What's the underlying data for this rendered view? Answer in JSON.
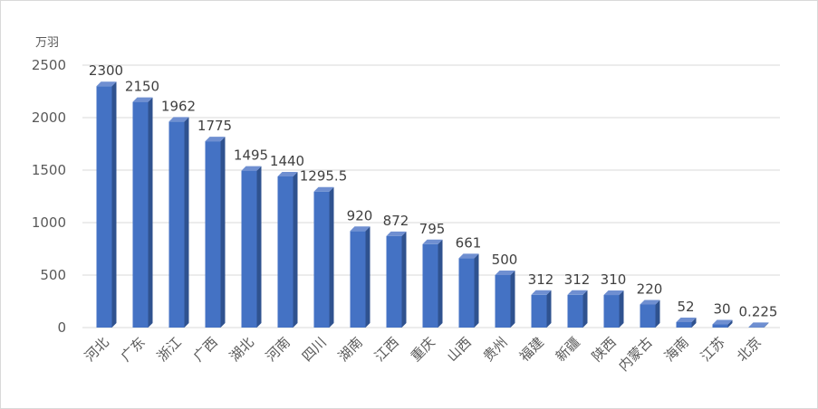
{
  "chart_data": {
    "type": "bar",
    "style": "3d-column",
    "unit": "万羽",
    "categories": [
      "河北",
      "广东",
      "浙江",
      "广西",
      "湖北",
      "河南",
      "四川",
      "湖南",
      "江西",
      "重庆",
      "山西",
      "贵州",
      "福建",
      "新疆",
      "陕西",
      "内蒙古",
      "海南",
      "江苏",
      "北京"
    ],
    "values": [
      2300,
      2150,
      1962,
      1775,
      1495,
      1440,
      1295.5,
      920,
      872,
      795,
      661,
      500,
      312,
      312,
      310,
      220,
      52,
      30,
      0.225
    ],
    "value_labels": [
      "2300",
      "2150",
      "1962",
      "1775",
      "1495",
      "1440",
      "1295.5",
      "920",
      "872",
      "795",
      "661",
      "500",
      "312",
      "312",
      "310",
      "220",
      "52",
      "30",
      "0.225"
    ],
    "ylim": [
      0,
      2500
    ],
    "yticks": [
      0,
      500,
      1000,
      1500,
      2000,
      2500
    ],
    "grid": true,
    "legend": "none",
    "colors": {
      "bar_front": "#4472c4",
      "bar_side": "#2f528f",
      "bar_top": "#6f8fd1",
      "grid": "#d9d9d9"
    }
  }
}
